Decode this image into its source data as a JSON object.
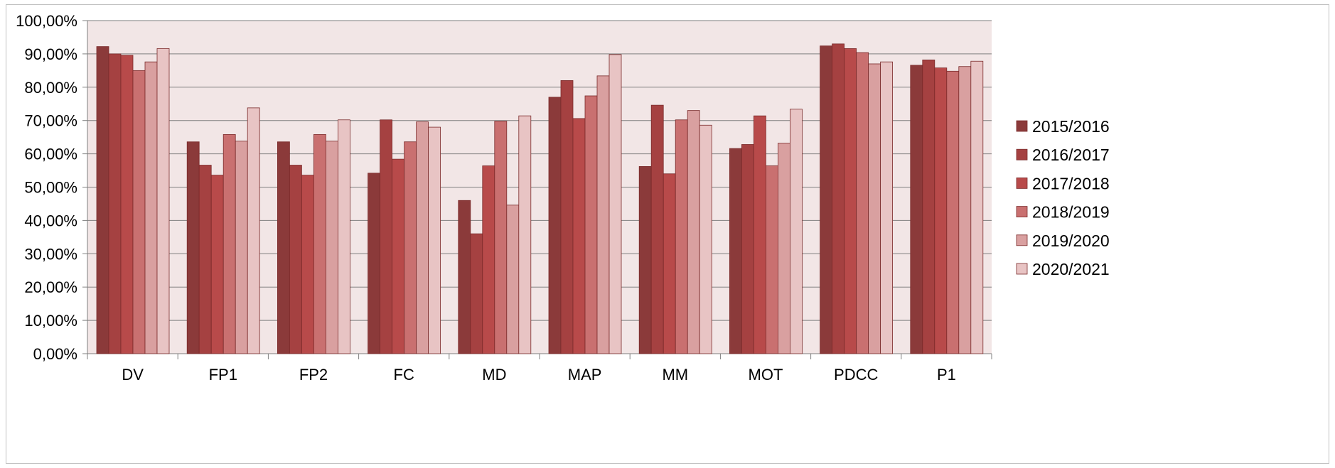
{
  "chart_data": {
    "type": "bar",
    "title": "",
    "xlabel": "",
    "ylabel": "",
    "ylim": [
      0,
      100
    ],
    "y_ticks": [
      "0,00%",
      "10,00%",
      "20,00%",
      "30,00%",
      "40,00%",
      "50,00%",
      "60,00%",
      "70,00%",
      "80,00%",
      "90,00%",
      "100,00%"
    ],
    "categories": [
      "DV",
      "FP1",
      "FP2",
      "FC",
      "MD",
      "MAP",
      "MM",
      "MOT",
      "PDCC",
      "P1"
    ],
    "grid": true,
    "legend_position": "right",
    "plot_background": "#f2e6e6",
    "series": [
      {
        "name": "2015/2016",
        "color": "#8b3a3a",
        "values": [
          92.2,
          63.6,
          63.6,
          54.2,
          46.0,
          77.0,
          56.2,
          61.6,
          92.4,
          86.6
        ]
      },
      {
        "name": "2016/2017",
        "color": "#a54141",
        "values": [
          90.0,
          56.6,
          56.6,
          70.2,
          36.0,
          82.0,
          74.6,
          62.8,
          93.0,
          88.2
        ]
      },
      {
        "name": "2017/2018",
        "color": "#b84a4a",
        "values": [
          89.6,
          53.6,
          53.6,
          58.4,
          56.4,
          70.6,
          54.0,
          71.4,
          91.6,
          85.8
        ]
      },
      {
        "name": "2018/2019",
        "color": "#c97070",
        "values": [
          85.0,
          65.8,
          65.8,
          63.6,
          69.8,
          77.4,
          70.2,
          56.4,
          90.4,
          84.8
        ]
      },
      {
        "name": "2019/2020",
        "color": "#d9a0a0",
        "values": [
          87.6,
          63.8,
          63.8,
          69.6,
          44.6,
          83.4,
          73.0,
          63.2,
          87.0,
          86.2
        ]
      },
      {
        "name": "2020/2021",
        "color": "#e8c4c4",
        "values": [
          91.6,
          73.8,
          70.2,
          68.0,
          71.4,
          89.8,
          68.6,
          73.4,
          87.6,
          87.8
        ]
      }
    ]
  }
}
